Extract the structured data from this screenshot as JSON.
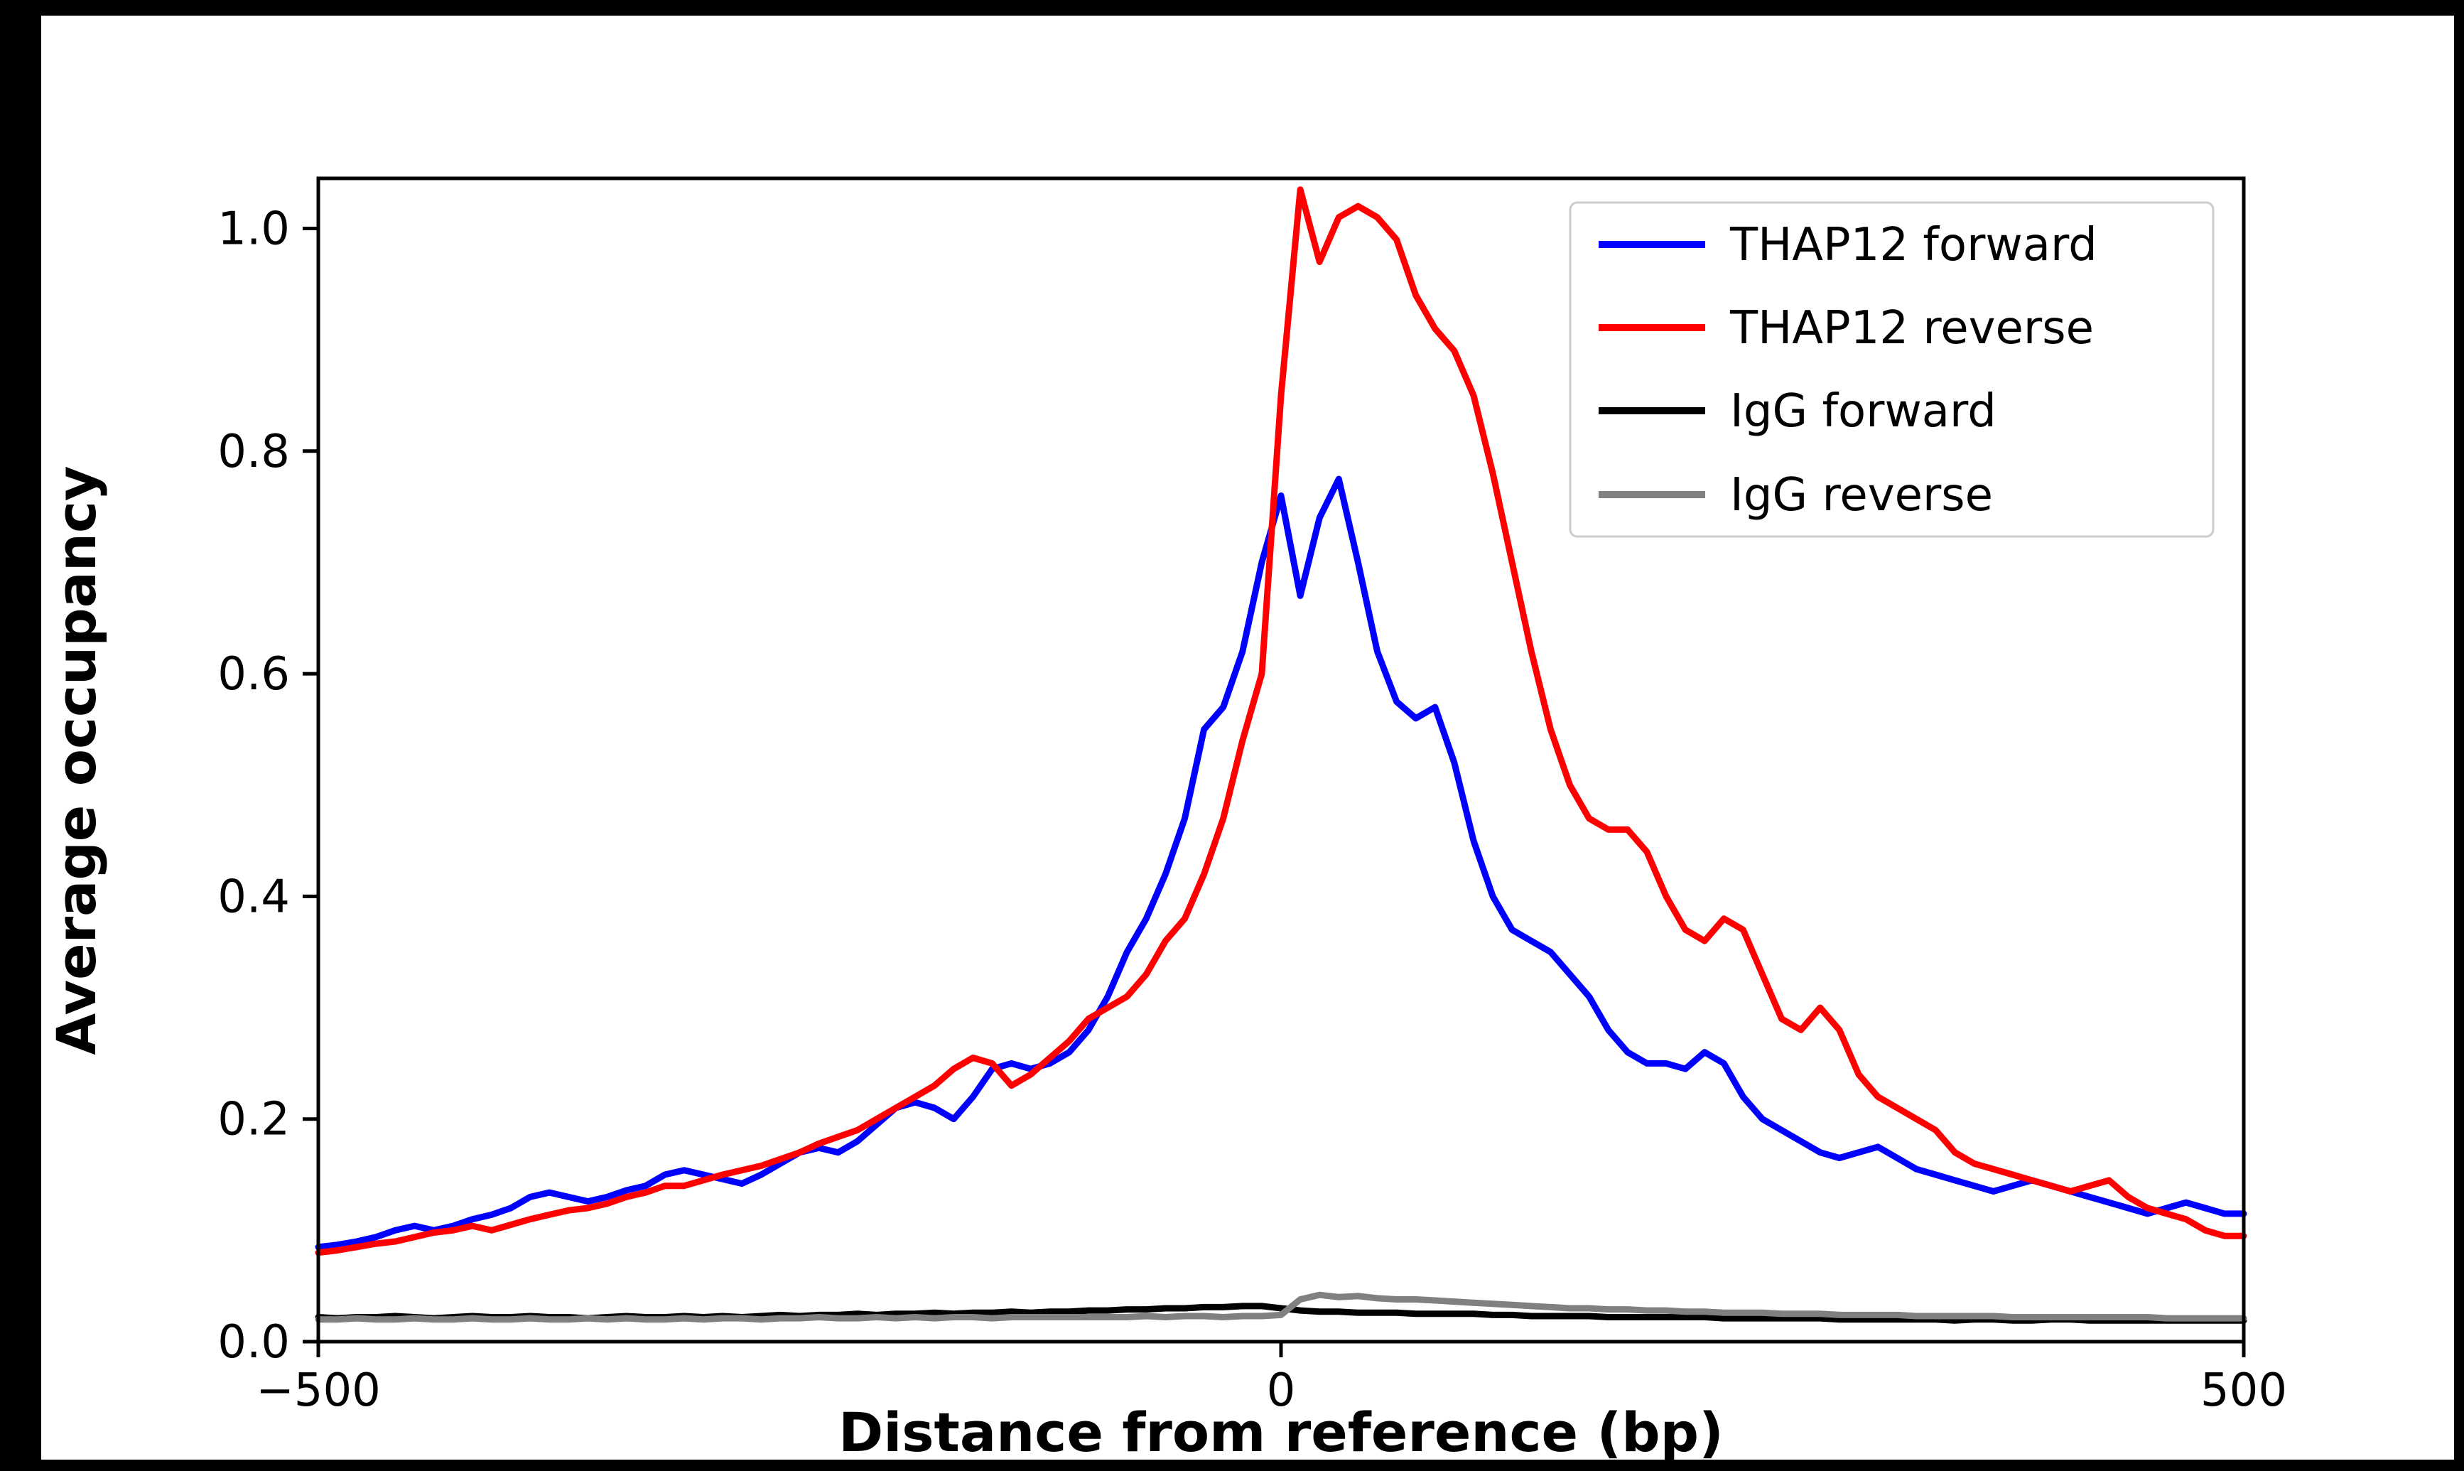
{
  "page": {
    "background": "#000000",
    "figure_background": "#ffffff",
    "axis_color": "#000000",
    "legend_border_color": "#cccccc"
  },
  "chart_data": {
    "type": "line",
    "title": "",
    "xlabel": "Distance from reference (bp)",
    "ylabel": "Average occupancy",
    "xlim": [
      -500,
      500
    ],
    "ylim": [
      0,
      1.045
    ],
    "xticks": [
      -500,
      0,
      500
    ],
    "xtick_labels": [
      "−500",
      "0",
      "500"
    ],
    "yticks": [
      0.0,
      0.2,
      0.4,
      0.6,
      0.8,
      1.0
    ],
    "ytick_labels": [
      "0.0",
      "0.2",
      "0.4",
      "0.6",
      "0.8",
      "1.0"
    ],
    "grid": false,
    "legend_position": "upper right",
    "x": [
      -500,
      -490,
      -480,
      -470,
      -460,
      -450,
      -440,
      -430,
      -420,
      -410,
      -400,
      -390,
      -380,
      -370,
      -360,
      -350,
      -340,
      -330,
      -320,
      -310,
      -300,
      -290,
      -280,
      -270,
      -260,
      -250,
      -240,
      -230,
      -220,
      -210,
      -200,
      -190,
      -180,
      -170,
      -160,
      -150,
      -140,
      -130,
      -120,
      -110,
      -100,
      -90,
      -80,
      -70,
      -60,
      -50,
      -40,
      -30,
      -20,
      -10,
      0,
      10,
      20,
      30,
      40,
      50,
      60,
      70,
      80,
      90,
      100,
      110,
      120,
      130,
      140,
      150,
      160,
      170,
      180,
      190,
      200,
      210,
      220,
      230,
      240,
      250,
      260,
      270,
      280,
      290,
      300,
      310,
      320,
      330,
      340,
      350,
      360,
      370,
      380,
      390,
      400,
      410,
      420,
      430,
      440,
      450,
      460,
      470,
      480,
      490,
      500
    ],
    "series": [
      {
        "name": "THAP12 forward",
        "color": "#0000ff",
        "values": [
          0.085,
          0.087,
          0.09,
          0.094,
          0.1,
          0.104,
          0.1,
          0.104,
          0.11,
          0.114,
          0.12,
          0.13,
          0.134,
          0.13,
          0.126,
          0.13,
          0.136,
          0.14,
          0.15,
          0.154,
          0.15,
          0.146,
          0.142,
          0.15,
          0.16,
          0.17,
          0.174,
          0.17,
          0.18,
          0.195,
          0.21,
          0.215,
          0.21,
          0.2,
          0.22,
          0.245,
          0.25,
          0.245,
          0.25,
          0.26,
          0.28,
          0.31,
          0.35,
          0.38,
          0.42,
          0.47,
          0.55,
          0.57,
          0.62,
          0.7,
          0.76,
          0.67,
          0.74,
          0.775,
          0.7,
          0.62,
          0.575,
          0.56,
          0.57,
          0.52,
          0.45,
          0.4,
          0.37,
          0.36,
          0.35,
          0.33,
          0.31,
          0.28,
          0.26,
          0.25,
          0.25,
          0.245,
          0.26,
          0.25,
          0.22,
          0.2,
          0.19,
          0.18,
          0.17,
          0.165,
          0.17,
          0.175,
          0.165,
          0.155,
          0.15,
          0.145,
          0.14,
          0.135,
          0.14,
          0.145,
          0.14,
          0.135,
          0.13,
          0.125,
          0.12,
          0.115,
          0.12,
          0.125,
          0.12,
          0.115,
          0.115
        ]
      },
      {
        "name": "THAP12 reverse",
        "color": "#ff0000",
        "values": [
          0.08,
          0.082,
          0.085,
          0.088,
          0.09,
          0.094,
          0.098,
          0.1,
          0.104,
          0.1,
          0.105,
          0.11,
          0.114,
          0.118,
          0.12,
          0.124,
          0.13,
          0.134,
          0.14,
          0.14,
          0.145,
          0.15,
          0.154,
          0.158,
          0.164,
          0.17,
          0.178,
          0.184,
          0.19,
          0.2,
          0.21,
          0.22,
          0.23,
          0.245,
          0.255,
          0.25,
          0.23,
          0.24,
          0.255,
          0.27,
          0.29,
          0.3,
          0.31,
          0.33,
          0.36,
          0.38,
          0.42,
          0.47,
          0.54,
          0.6,
          0.85,
          1.035,
          0.97,
          1.01,
          1.02,
          1.01,
          0.99,
          0.94,
          0.91,
          0.89,
          0.85,
          0.78,
          0.7,
          0.62,
          0.55,
          0.5,
          0.47,
          0.46,
          0.46,
          0.44,
          0.4,
          0.37,
          0.36,
          0.38,
          0.37,
          0.33,
          0.29,
          0.28,
          0.3,
          0.28,
          0.24,
          0.22,
          0.21,
          0.2,
          0.19,
          0.17,
          0.16,
          0.155,
          0.15,
          0.145,
          0.14,
          0.135,
          0.14,
          0.145,
          0.13,
          0.12,
          0.115,
          0.11,
          0.1,
          0.095,
          0.095
        ]
      },
      {
        "name": "IgG forward",
        "color": "#000000",
        "values": [
          0.022,
          0.021,
          0.022,
          0.022,
          0.023,
          0.022,
          0.021,
          0.022,
          0.023,
          0.022,
          0.022,
          0.023,
          0.022,
          0.022,
          0.021,
          0.022,
          0.023,
          0.022,
          0.022,
          0.023,
          0.022,
          0.023,
          0.022,
          0.023,
          0.024,
          0.023,
          0.024,
          0.024,
          0.025,
          0.024,
          0.025,
          0.025,
          0.026,
          0.025,
          0.026,
          0.026,
          0.027,
          0.026,
          0.027,
          0.027,
          0.028,
          0.028,
          0.029,
          0.029,
          0.03,
          0.03,
          0.031,
          0.031,
          0.032,
          0.032,
          0.03,
          0.028,
          0.027,
          0.027,
          0.026,
          0.026,
          0.026,
          0.025,
          0.025,
          0.025,
          0.025,
          0.024,
          0.024,
          0.023,
          0.023,
          0.023,
          0.023,
          0.022,
          0.022,
          0.022,
          0.022,
          0.022,
          0.022,
          0.021,
          0.021,
          0.021,
          0.021,
          0.021,
          0.021,
          0.02,
          0.02,
          0.02,
          0.02,
          0.02,
          0.02,
          0.019,
          0.02,
          0.02,
          0.019,
          0.019,
          0.02,
          0.02,
          0.019,
          0.019,
          0.019,
          0.019,
          0.019,
          0.019,
          0.019,
          0.019,
          0.019
        ]
      },
      {
        "name": "IgG reverse",
        "color": "#808080",
        "values": [
          0.02,
          0.02,
          0.021,
          0.02,
          0.02,
          0.021,
          0.02,
          0.02,
          0.021,
          0.02,
          0.02,
          0.021,
          0.02,
          0.02,
          0.021,
          0.02,
          0.021,
          0.02,
          0.02,
          0.021,
          0.02,
          0.021,
          0.021,
          0.02,
          0.021,
          0.021,
          0.022,
          0.021,
          0.021,
          0.022,
          0.021,
          0.022,
          0.021,
          0.022,
          0.022,
          0.021,
          0.022,
          0.022,
          0.022,
          0.022,
          0.022,
          0.022,
          0.022,
          0.023,
          0.022,
          0.023,
          0.023,
          0.022,
          0.023,
          0.023,
          0.024,
          0.038,
          0.042,
          0.04,
          0.041,
          0.039,
          0.038,
          0.038,
          0.037,
          0.036,
          0.035,
          0.034,
          0.033,
          0.032,
          0.031,
          0.03,
          0.03,
          0.029,
          0.029,
          0.028,
          0.028,
          0.027,
          0.027,
          0.026,
          0.026,
          0.026,
          0.025,
          0.025,
          0.025,
          0.024,
          0.024,
          0.024,
          0.024,
          0.023,
          0.023,
          0.023,
          0.023,
          0.023,
          0.022,
          0.022,
          0.022,
          0.022,
          0.022,
          0.022,
          0.022,
          0.022,
          0.021,
          0.021,
          0.021,
          0.021,
          0.021
        ]
      }
    ]
  }
}
